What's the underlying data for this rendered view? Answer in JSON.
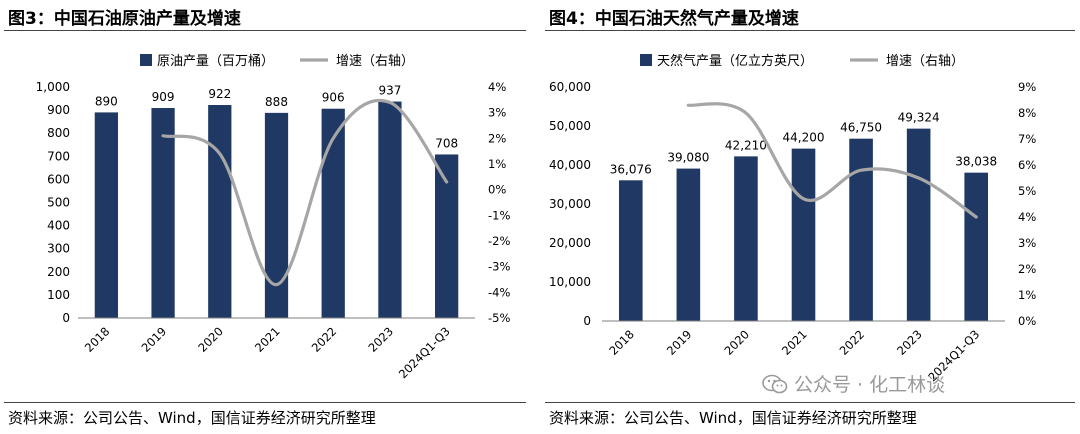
{
  "charts": [
    {
      "title": "图3：中国石油原油产量及增速",
      "source": "资料来源：公司公告、Wind，国信证券经济研究所整理",
      "chart_data": {
        "type": "bar",
        "categories": [
          "2018",
          "2019",
          "2020",
          "2021",
          "2022",
          "2023",
          "2024Q1-Q3"
        ],
        "series": [
          {
            "name": "原油产量（百万桶）",
            "type": "bar",
            "axis": "left",
            "values": [
              890,
              909,
              922,
              888,
              906,
              937,
              708
            ],
            "labels": [
              "890",
              "909",
              "922",
              "888",
              "906",
              "937",
              "708"
            ]
          },
          {
            "name": "增速（右轴）",
            "type": "line",
            "axis": "right",
            "values": [
              null,
              2.1,
              1.4,
              -3.7,
              2.0,
              3.4,
              0.3
            ]
          }
        ],
        "y_left": {
          "min": 0,
          "max": 1000,
          "step": 100,
          "ticks": [
            "0",
            "100",
            "200",
            "300",
            "400",
            "500",
            "600",
            "700",
            "800",
            "900",
            "1,000"
          ]
        },
        "y_right": {
          "min": -5,
          "max": 4,
          "step": 1,
          "ticks": [
            "-5%",
            "-4%",
            "-3%",
            "-2%",
            "-1%",
            "0%",
            "1%",
            "2%",
            "3%",
            "4%"
          ]
        },
        "legend": "top"
      }
    },
    {
      "title": "图4：中国石油天然气产量及增速",
      "source": "资料来源：公司公告、Wind，国信证券经济研究所整理",
      "chart_data": {
        "type": "bar",
        "categories": [
          "2018",
          "2019",
          "2020",
          "2021",
          "2022",
          "2023",
          "2024Q1-Q3"
        ],
        "series": [
          {
            "name": "天然气产量（亿立方英尺）",
            "type": "bar",
            "axis": "left",
            "values": [
              36076,
              39080,
              42210,
              44200,
              46750,
              49324,
              38038
            ],
            "labels": [
              "36,076",
              "39,080",
              "42,210",
              "44,200",
              "46,750",
              "49,324",
              "38,038"
            ]
          },
          {
            "name": "增速（右轴）",
            "type": "line",
            "axis": "right",
            "values": [
              null,
              8.3,
              8.0,
              4.7,
              5.8,
              5.5,
              4.0
            ]
          }
        ],
        "y_left": {
          "min": 0,
          "max": 60000,
          "step": 10000,
          "ticks": [
            "0",
            "10,000",
            "20,000",
            "30,000",
            "40,000",
            "50,000",
            "60,000"
          ]
        },
        "y_right": {
          "min": 0,
          "max": 9,
          "step": 1,
          "ticks": [
            "0%",
            "1%",
            "2%",
            "3%",
            "4%",
            "5%",
            "6%",
            "7%",
            "8%",
            "9%"
          ]
        },
        "legend": "top"
      }
    }
  ],
  "watermark": "公众号 · 化工林谈",
  "colors": {
    "bar": "#1f3864",
    "line": "#a6a6a6",
    "axis": "#7f7f7f"
  }
}
